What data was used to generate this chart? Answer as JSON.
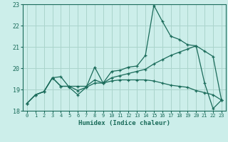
{
  "title": "",
  "xlabel": "Humidex (Indice chaleur)",
  "bg_color": "#cceeea",
  "grid_color": "#aad4cc",
  "line_color": "#1a6b5a",
  "x_values": [
    0,
    1,
    2,
    3,
    4,
    5,
    6,
    7,
    8,
    9,
    10,
    11,
    12,
    13,
    14,
    15,
    16,
    17,
    18,
    19,
    20,
    21,
    22,
    23
  ],
  "series1": [
    18.35,
    18.75,
    18.9,
    19.55,
    19.6,
    19.1,
    18.75,
    19.1,
    20.05,
    19.3,
    19.85,
    19.9,
    20.05,
    20.1,
    20.6,
    22.95,
    22.2,
    21.5,
    21.35,
    21.1,
    21.05,
    19.3,
    18.1,
    18.5
  ],
  "series2": [
    18.35,
    18.75,
    18.9,
    19.55,
    19.15,
    19.15,
    19.15,
    19.15,
    19.45,
    19.3,
    19.55,
    19.65,
    19.75,
    19.85,
    19.95,
    20.2,
    20.4,
    20.6,
    20.75,
    20.9,
    21.05,
    20.8,
    20.55,
    18.5
  ],
  "series3": [
    18.35,
    18.75,
    18.9,
    19.55,
    19.15,
    19.15,
    18.95,
    19.1,
    19.3,
    19.3,
    19.4,
    19.45,
    19.45,
    19.45,
    19.45,
    19.4,
    19.3,
    19.2,
    19.15,
    19.1,
    18.95,
    18.85,
    18.75,
    18.5
  ],
  "ylim": [
    18,
    23
  ],
  "yticks": [
    18,
    19,
    20,
    21,
    22,
    23
  ]
}
